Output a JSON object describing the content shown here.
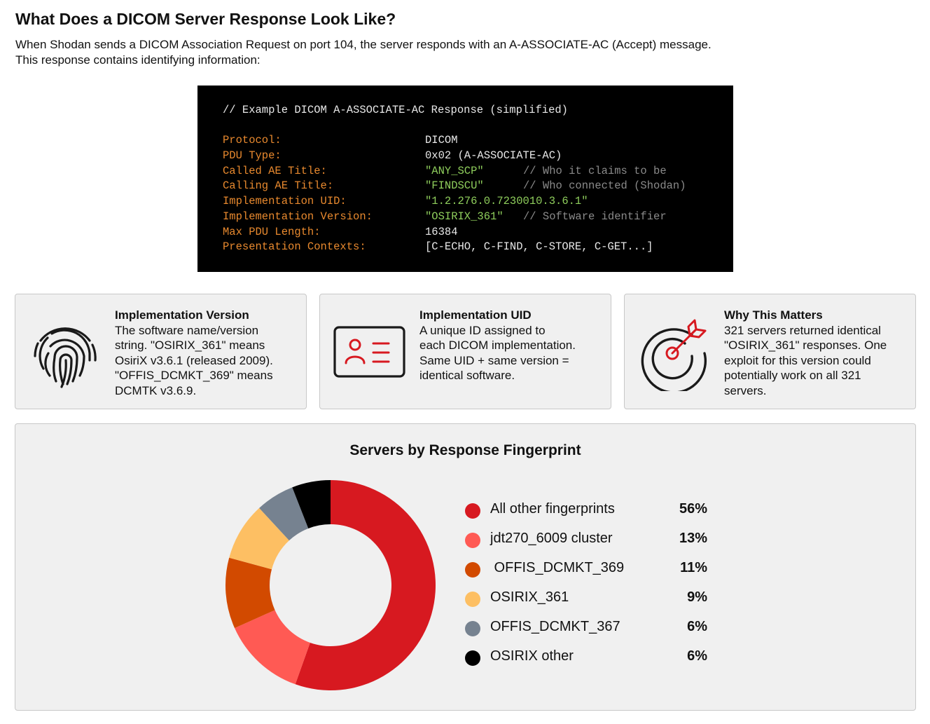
{
  "header": {
    "title": "What Does a DICOM Server Response Look Like?",
    "intro_line1": "When Shodan sends a DICOM Association Request on port 104, the server responds with an A-ASSOCIATE-AC (Accept) message.",
    "intro_line2": "This response contains identifying information:"
  },
  "code": {
    "comment": "// Example DICOM A-ASSOCIATE-AC Response (simplified)",
    "rows": [
      {
        "key": "Protocol:",
        "value": "DICOM",
        "comment": ""
      },
      {
        "key": "PDU Type:",
        "value": "0x02 (A-ASSOCIATE-AC)",
        "comment": ""
      },
      {
        "key": "Called AE Title:",
        "value": "\"ANY_SCP\"",
        "comment": "// Who it claims to be"
      },
      {
        "key": "Calling AE Title:",
        "value": "\"FINDSCU\"",
        "comment": "// Who connected (Shodan)"
      },
      {
        "key": "Implementation UID:",
        "value": "\"1.2.276.0.7230010.3.6.1\"",
        "comment": ""
      },
      {
        "key": "Implementation Version:",
        "value": "\"OSIRIX_361\"",
        "comment": "// Software identifier"
      },
      {
        "key": "Max PDU Length:",
        "value": "16384",
        "comment": ""
      },
      {
        "key": "Presentation Contexts:",
        "value": "[C-ECHO, C-FIND, C-STORE, C-GET...]",
        "comment": ""
      }
    ],
    "colors": {
      "key": "#e8892e",
      "string": "#8fce5c",
      "plain": "#e8e8e8",
      "comment": "#8a8a8a"
    }
  },
  "cards": [
    {
      "icon": "fingerprint-icon",
      "heading": "Implementation Version",
      "lines": [
        "The software name/version",
        "string. \"OSIRIX_361\" means",
        "OsiriX v3.6.1 (released 2009).",
        "\"OFFIS_DCMKT_369\" means",
        "DCMTK v3.6.9."
      ]
    },
    {
      "icon": "id-card-icon",
      "heading": "Implementation UID",
      "lines": [
        "A unique ID assigned to",
        "each DICOM implementation.",
        "Same UID + same version =",
        "identical software."
      ]
    },
    {
      "icon": "target-icon",
      "heading": "Why This Matters",
      "lines": [
        "321 servers returned identical",
        "\"OSIRIX_361\" responses. One",
        "exploit for this version could",
        "potentially work on all 321",
        "servers."
      ]
    }
  ],
  "chart_data": {
    "type": "pie",
    "title": "Servers by Response Fingerprint",
    "donut": true,
    "categories": [
      "All other fingerprints",
      "jdt270_6009 cluster",
      " OFFIS_DCMKT_369",
      "OSIRIX_361",
      "OFFIS_DCMKT_367",
      "OSIRIX other"
    ],
    "values": [
      56,
      13,
      11,
      9,
      6,
      6
    ],
    "value_labels": [
      "56%",
      "13%",
      "11%",
      "9%",
      "6%",
      "6%"
    ],
    "colors": [
      "#d71920",
      "#ff5a54",
      "#d24a00",
      "#fdbf63",
      "#768290",
      "#000000"
    ],
    "legend_position": "right"
  }
}
